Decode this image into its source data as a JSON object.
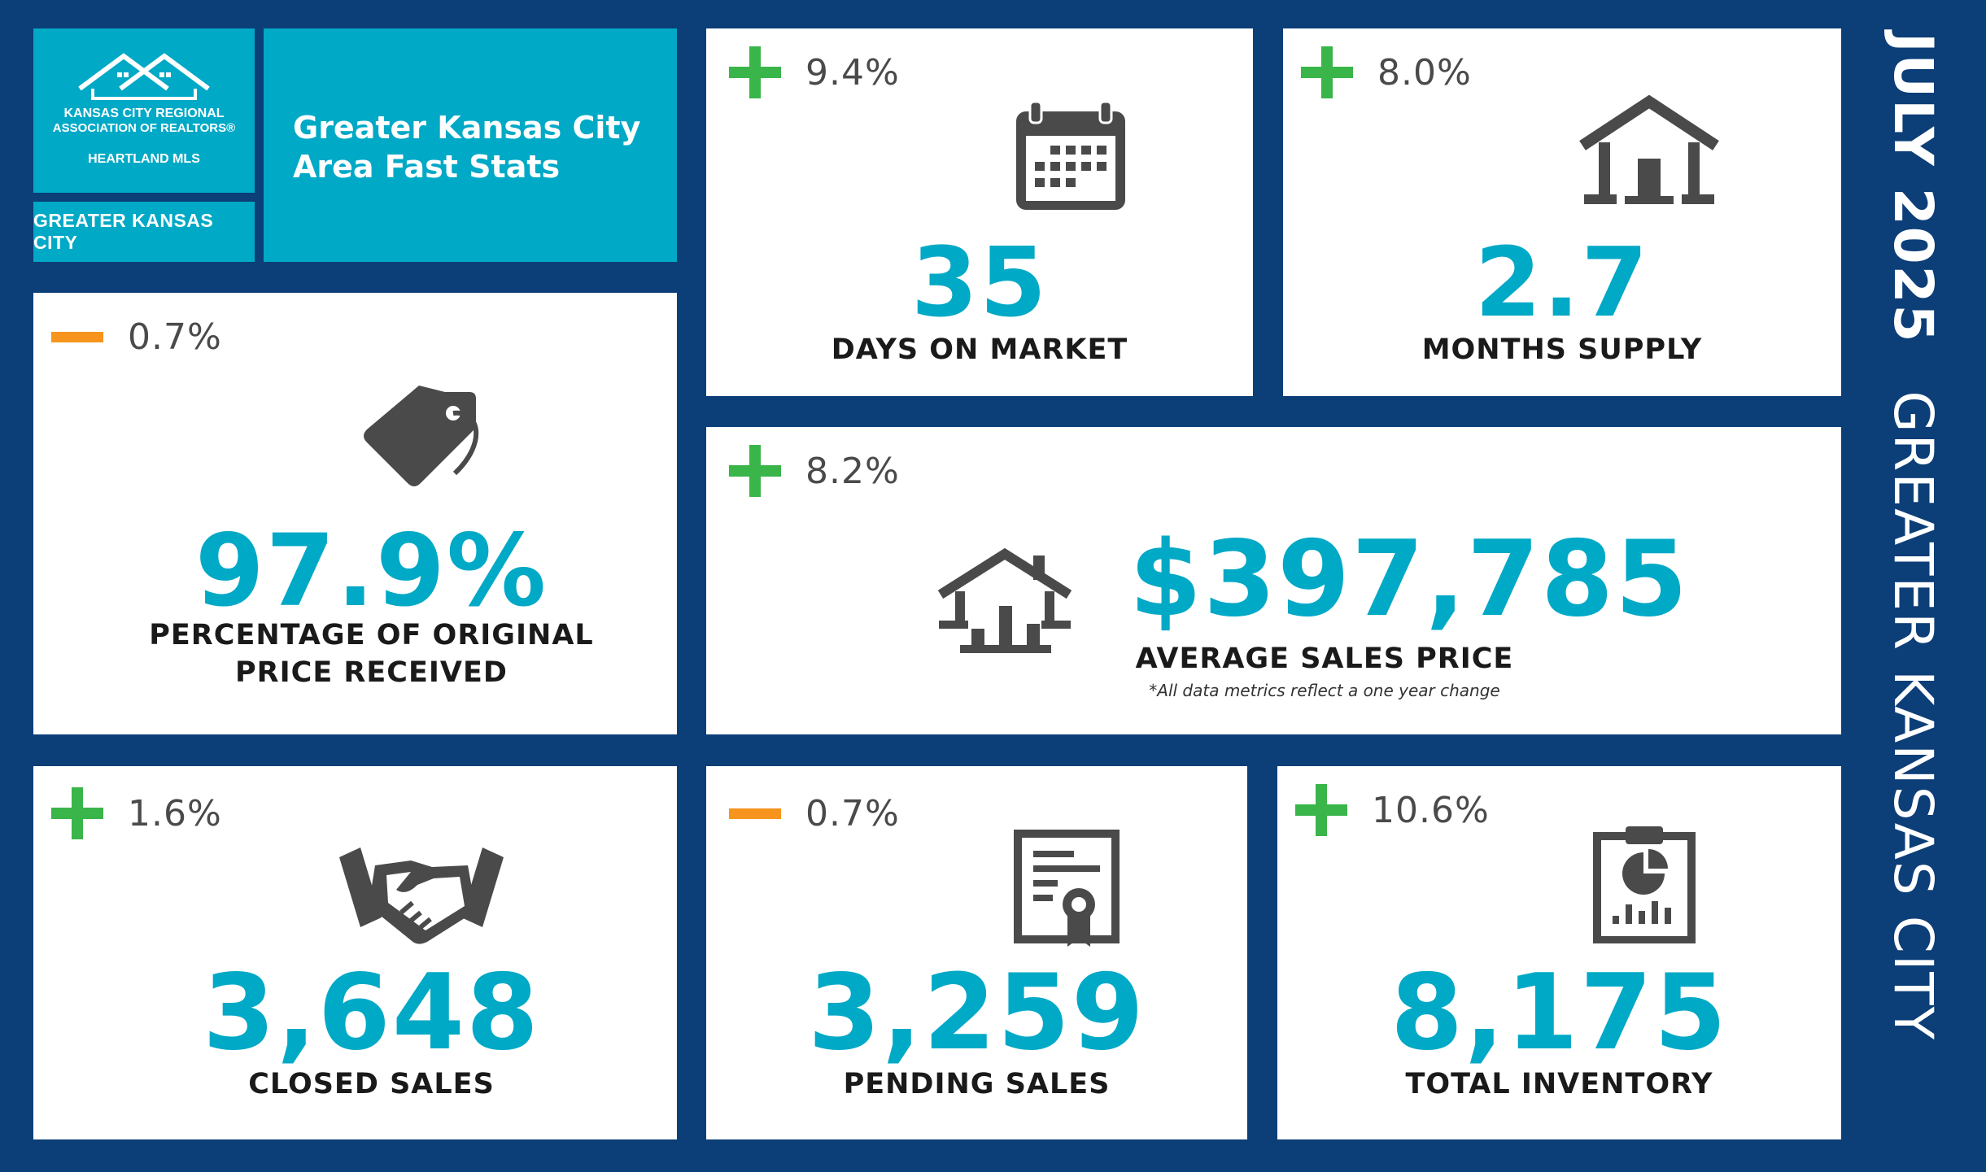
{
  "header": {
    "logo_line1": "KANSAS CITY REGIONAL",
    "logo_line2": "ASSOCIATION OF REALTORS®",
    "logo_line3": "HEARTLAND MLS",
    "region_label": "GREATER KANSAS CITY",
    "report_title": "Greater Kansas City Area Fast Stats"
  },
  "sidebar": {
    "month": "JULY 2025",
    "area": "GREATER KANSAS CITY"
  },
  "colors": {
    "background": "#0c3e78",
    "accent_teal": "#00a9c6",
    "increase_green": "#39b54a",
    "decrease_orange": "#f7941d",
    "icon_gray": "#4a4a4a"
  },
  "stats": {
    "days_on_market": {
      "change": "9.4%",
      "direction": "plus",
      "value": "35",
      "label": "DAYS ON MARKET",
      "icon": "calendar-icon"
    },
    "months_supply": {
      "change": "8.0%",
      "direction": "plus",
      "value": "2.7",
      "label": "MONTHS SUPPLY",
      "icon": "house-icon"
    },
    "pct_original_price": {
      "change": "0.7%",
      "direction": "minus",
      "value": "97.9%",
      "label_line1": "PERCENTAGE OF ORIGINAL",
      "label_line2": "PRICE RECEIVED",
      "icon": "price-tag-icon"
    },
    "average_sales_price": {
      "change": "8.2%",
      "direction": "plus",
      "value": "$397,785",
      "label": "AVERAGE SALES PRICE",
      "footnote": "*All data metrics reflect a one year change",
      "icon": "house-chart-icon"
    },
    "closed_sales": {
      "change": "1.6%",
      "direction": "plus",
      "value": "3,648",
      "label": "CLOSED SALES",
      "icon": "handshake-icon"
    },
    "pending_sales": {
      "change": "0.7%",
      "direction": "minus",
      "value": "3,259",
      "label": "PENDING SALES",
      "icon": "certificate-icon"
    },
    "total_inventory": {
      "change": "10.6%",
      "direction": "plus",
      "value": "8,175",
      "label": "TOTAL INVENTORY",
      "icon": "clipboard-chart-icon"
    }
  }
}
